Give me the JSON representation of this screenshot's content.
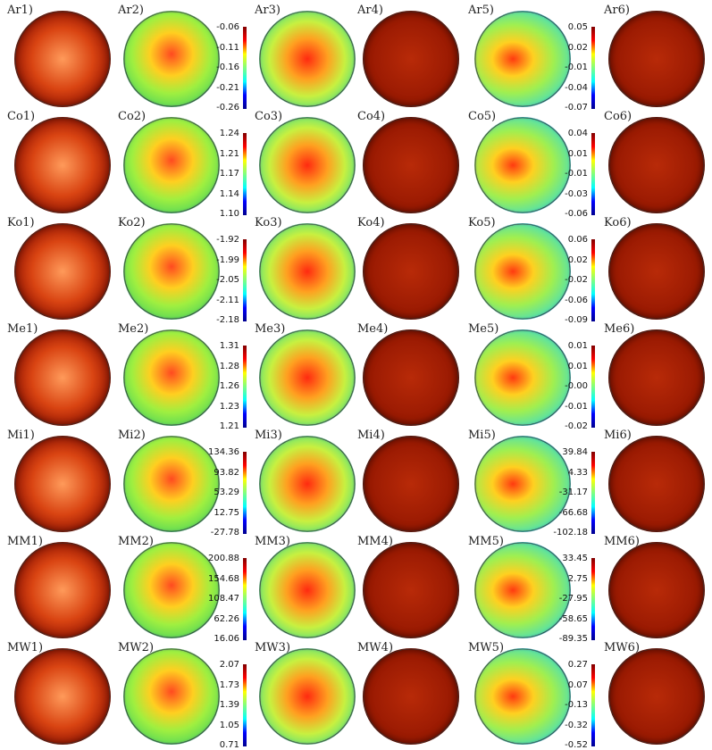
{
  "rows": [
    {
      "id": "Ar",
      "labels": [
        "Ar1)",
        "Ar2)",
        "Ar3)",
        "Ar4)",
        "Ar5)",
        "Ar6)"
      ],
      "cbar2": [
        "-0.06",
        "-0.11",
        "-0.16",
        "-0.21",
        "-0.26"
      ],
      "cbar5": [
        "0.05",
        "0.02",
        "-0.01",
        "-0.04",
        "-0.07"
      ]
    },
    {
      "id": "Co",
      "labels": [
        "Co1)",
        "Co2)",
        "Co3)",
        "Co4)",
        "Co5)",
        "Co6)"
      ],
      "cbar2": [
        "1.24",
        "1.21",
        "1.17",
        "1.14",
        "1.10"
      ],
      "cbar5": [
        "0.04",
        "0.01",
        "-0.01",
        "-0.03",
        "-0.06"
      ]
    },
    {
      "id": "Ko",
      "labels": [
        "Ko1)",
        "Ko2)",
        "Ko3)",
        "Ko4)",
        "Ko5)",
        "Ko6)"
      ],
      "cbar2": [
        "-1.92",
        "-1.99",
        "-2.05",
        "-2.11",
        "-2.18"
      ],
      "cbar5": [
        "0.06",
        "0.02",
        "-0.02",
        "-0.06",
        "-0.09"
      ]
    },
    {
      "id": "Me",
      "labels": [
        "Me1)",
        "Me2)",
        "Me3)",
        "Me4)",
        "Me5)",
        "Me6)"
      ],
      "cbar2": [
        "1.31",
        "1.28",
        "1.26",
        "1.23",
        "1.21"
      ],
      "cbar5": [
        "0.01",
        "0.01",
        "-0.00",
        "-0.01",
        "-0.02"
      ]
    },
    {
      "id": "Mi",
      "labels": [
        "Mi1)",
        "Mi2)",
        "Mi3)",
        "Mi4)",
        "Mi5)",
        "Mi6)"
      ],
      "cbar2": [
        "134.36",
        "93.82",
        "53.29",
        "12.75",
        "-27.78"
      ],
      "cbar5": [
        "39.84",
        "4.33",
        "-31.17",
        "-66.68",
        "-102.18"
      ]
    },
    {
      "id": "MM",
      "labels": [
        "MM1)",
        "MM2)",
        "MM3)",
        "MM4)",
        "MM5)",
        "MM6)"
      ],
      "cbar2": [
        "200.88",
        "154.68",
        "108.47",
        "62.26",
        "16.06"
      ],
      "cbar5": [
        "33.45",
        "2.75",
        "-27.95",
        "-58.65",
        "-89.35"
      ]
    },
    {
      "id": "MW",
      "labels": [
        "MW1)",
        "MW2)",
        "MW3)",
        "MW4)",
        "MW5)",
        "MW6)"
      ],
      "cbar2": [
        "2.07",
        "1.73",
        "1.39",
        "1.05",
        "0.71"
      ],
      "cbar5": [
        "0.27",
        "0.07",
        "-0.13",
        "-0.32",
        "-0.52"
      ]
    }
  ],
  "colors": {
    "jet": [
      "#00008f",
      "#0000ff",
      "#00ffff",
      "#7fff7f",
      "#ffff00",
      "#ff0000",
      "#800000"
    ],
    "heat": [
      "#000000",
      "#7a0000",
      "#c01a00",
      "#e04a10",
      "#ff9a40"
    ]
  }
}
